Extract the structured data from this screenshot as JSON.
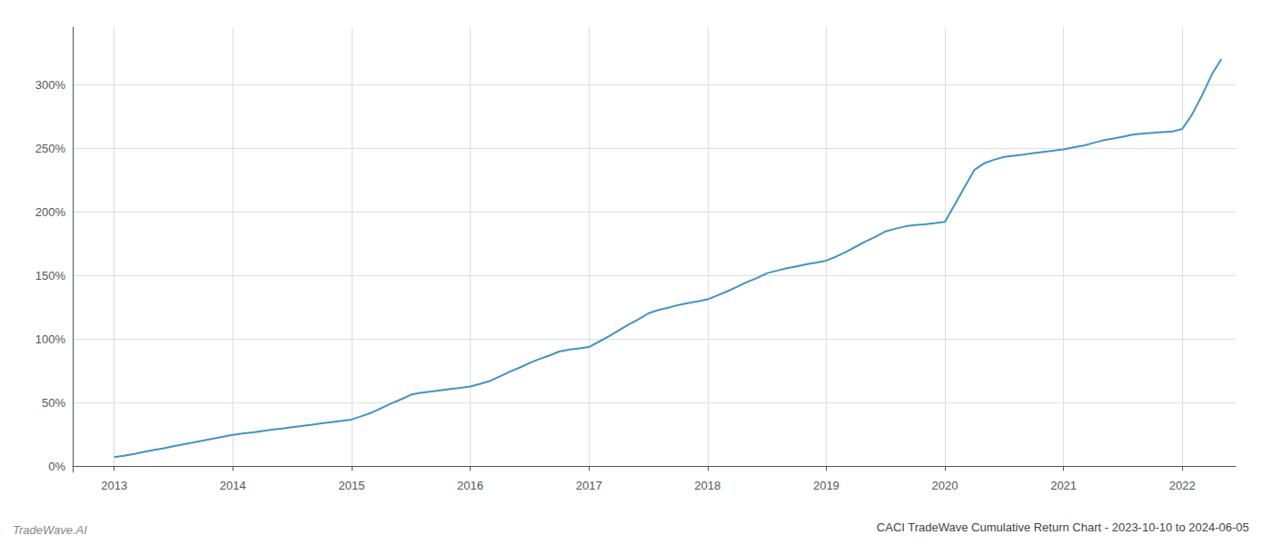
{
  "chart_data": {
    "type": "line",
    "title": "CACI TradeWave Cumulative Return Chart - 2023-10-10 to 2024-06-05",
    "annotations": [
      "TradeWave.AI"
    ],
    "color": "#4393c4",
    "grid": true,
    "xlim": [
      2012.65,
      2022.45
    ],
    "xticks": [
      2013,
      2014,
      2015,
      2016,
      2017,
      2018,
      2019,
      2020,
      2021,
      2022
    ],
    "ylim": [
      -5,
      345
    ],
    "yticks": [
      {
        "value": 0,
        "label": "0%"
      },
      {
        "value": 50,
        "label": "50%"
      },
      {
        "value": 100,
        "label": "100%"
      },
      {
        "value": 150,
        "label": "150%"
      },
      {
        "value": 200,
        "label": "200%"
      },
      {
        "value": 250,
        "label": "250%"
      },
      {
        "value": 300,
        "label": "300%"
      }
    ],
    "x": [
      2013.0,
      2013.08,
      2013.17,
      2013.25,
      2013.33,
      2013.42,
      2013.5,
      2013.58,
      2013.67,
      2013.75,
      2013.83,
      2013.92,
      2014.0,
      2014.08,
      2014.17,
      2014.25,
      2014.33,
      2014.42,
      2014.5,
      2014.58,
      2014.67,
      2014.75,
      2014.83,
      2014.92,
      2015.0,
      2015.08,
      2015.17,
      2015.25,
      2015.33,
      2015.42,
      2015.5,
      2015.58,
      2015.67,
      2015.75,
      2015.83,
      2015.92,
      2016.0,
      2016.08,
      2016.17,
      2016.25,
      2016.33,
      2016.42,
      2016.5,
      2016.58,
      2016.67,
      2016.75,
      2016.83,
      2016.92,
      2017.0,
      2017.08,
      2017.17,
      2017.25,
      2017.33,
      2017.42,
      2017.5,
      2017.58,
      2017.67,
      2017.75,
      2017.83,
      2017.92,
      2018.0,
      2018.08,
      2018.17,
      2018.25,
      2018.33,
      2018.42,
      2018.5,
      2018.58,
      2018.67,
      2018.75,
      2018.83,
      2018.92,
      2019.0,
      2019.08,
      2019.17,
      2019.25,
      2019.33,
      2019.42,
      2019.5,
      2019.58,
      2019.67,
      2019.75,
      2019.83,
      2019.92,
      2020.0,
      2020.08,
      2020.17,
      2020.25,
      2020.33,
      2020.42,
      2020.5,
      2020.58,
      2020.67,
      2020.75,
      2020.83,
      2020.92,
      2021.0,
      2021.08,
      2021.17,
      2021.25,
      2021.33,
      2021.42,
      2021.5,
      2021.58,
      2021.67,
      2021.75,
      2021.83,
      2021.92,
      2022.0,
      2022.08,
      2022.17,
      2022.25,
      2022.33
    ],
    "values": [
      7.0,
      8.0,
      9.5,
      11.0,
      12.5,
      14.0,
      15.5,
      17.0,
      18.5,
      20.0,
      21.5,
      23.0,
      24.5,
      25.5,
      26.5,
      27.5,
      28.5,
      29.5,
      30.5,
      31.5,
      32.5,
      33.5,
      34.5,
      35.5,
      36.5,
      39.0,
      42.0,
      45.5,
      49.0,
      52.5,
      56.0,
      57.5,
      58.5,
      59.5,
      60.5,
      61.5,
      62.5,
      64.5,
      67.0,
      70.5,
      74.0,
      77.5,
      81.0,
      84.0,
      87.0,
      90.0,
      91.5,
      92.5,
      93.5,
      97.5,
      102.0,
      106.5,
      111.0,
      115.5,
      120.0,
      122.5,
      124.5,
      126.5,
      128.0,
      129.5,
      131.0,
      134.0,
      137.5,
      141.0,
      144.5,
      148.0,
      151.5,
      153.5,
      155.5,
      157.0,
      158.5,
      160.0,
      161.5,
      164.5,
      168.5,
      172.5,
      176.5,
      180.5,
      184.5,
      186.5,
      188.5,
      189.5,
      190.0,
      191.0,
      192.0,
      205.0,
      220.0,
      233.0,
      238.0,
      241.0,
      243.0,
      244.0,
      245.0,
      246.0,
      247.0,
      248.0,
      249.0,
      250.5,
      252.0,
      254.0,
      256.0,
      257.5,
      259.0,
      260.5,
      261.5,
      262.0,
      262.5,
      263.0,
      265.0,
      276.0,
      292.0,
      308.0,
      320.0
    ]
  }
}
